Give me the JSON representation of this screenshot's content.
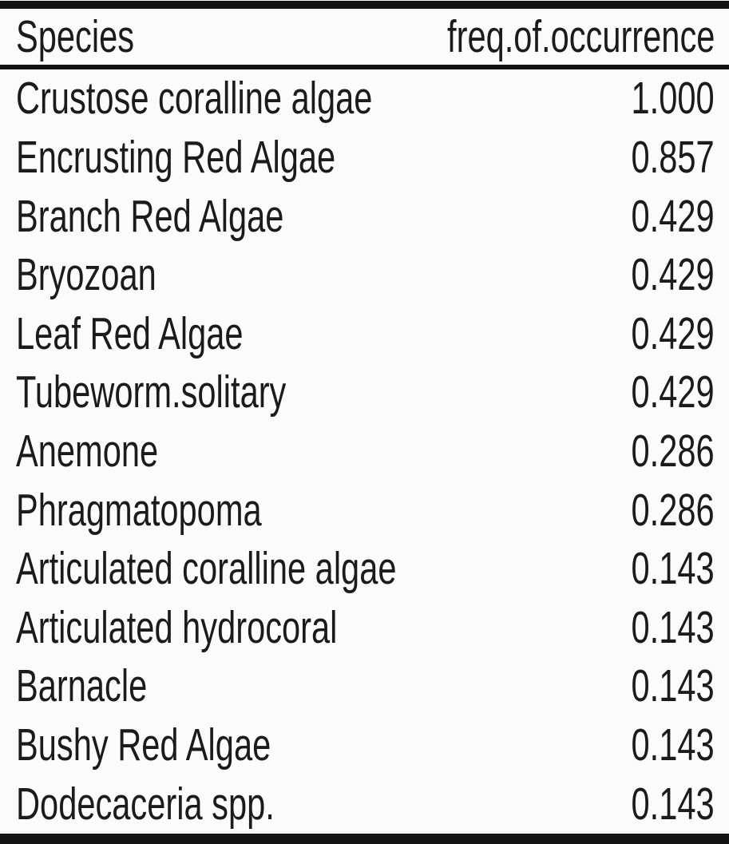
{
  "table": {
    "columns": [
      {
        "label": "Species"
      },
      {
        "label": "freq.of.occurrence"
      }
    ],
    "rows": [
      {
        "species": "Crustose coralline algae",
        "freq": "1.000"
      },
      {
        "species": "Encrusting Red Algae",
        "freq": "0.857"
      },
      {
        "species": "Branch Red Algae",
        "freq": "0.429"
      },
      {
        "species": "Bryozoan",
        "freq": "0.429"
      },
      {
        "species": "Leaf Red Algae",
        "freq": "0.429"
      },
      {
        "species": "Tubeworm.solitary",
        "freq": "0.429"
      },
      {
        "species": "Anemone",
        "freq": "0.286"
      },
      {
        "species": "Phragmatopoma",
        "freq": "0.286"
      },
      {
        "species": "Articulated coralline algae",
        "freq": "0.143"
      },
      {
        "species": "Articulated hydrocoral",
        "freq": "0.143"
      },
      {
        "species": "Barnacle",
        "freq": "0.143"
      },
      {
        "species": "Bushy Red Algae",
        "freq": "0.143"
      },
      {
        "species": "Dodecaceria spp.",
        "freq": "0.143"
      }
    ]
  },
  "colors": {
    "background": "#fbfbfb",
    "rule": "#131313",
    "text": "#1b1b1b"
  },
  "chart_data": {
    "type": "table",
    "title": "",
    "columns": [
      "Species",
      "freq.of.occurrence"
    ],
    "rows": [
      [
        "Crustose coralline algae",
        1.0
      ],
      [
        "Encrusting Red Algae",
        0.857
      ],
      [
        "Branch Red Algae",
        0.429
      ],
      [
        "Bryozoan",
        0.429
      ],
      [
        "Leaf Red Algae",
        0.429
      ],
      [
        "Tubeworm.solitary",
        0.429
      ],
      [
        "Anemone",
        0.286
      ],
      [
        "Phragmatopoma",
        0.286
      ],
      [
        "Articulated coralline algae",
        0.143
      ],
      [
        "Articulated hydrocoral",
        0.143
      ],
      [
        "Barnacle",
        0.143
      ],
      [
        "Bushy Red Algae",
        0.143
      ],
      [
        "Dodecaceria spp.",
        0.143
      ]
    ]
  }
}
